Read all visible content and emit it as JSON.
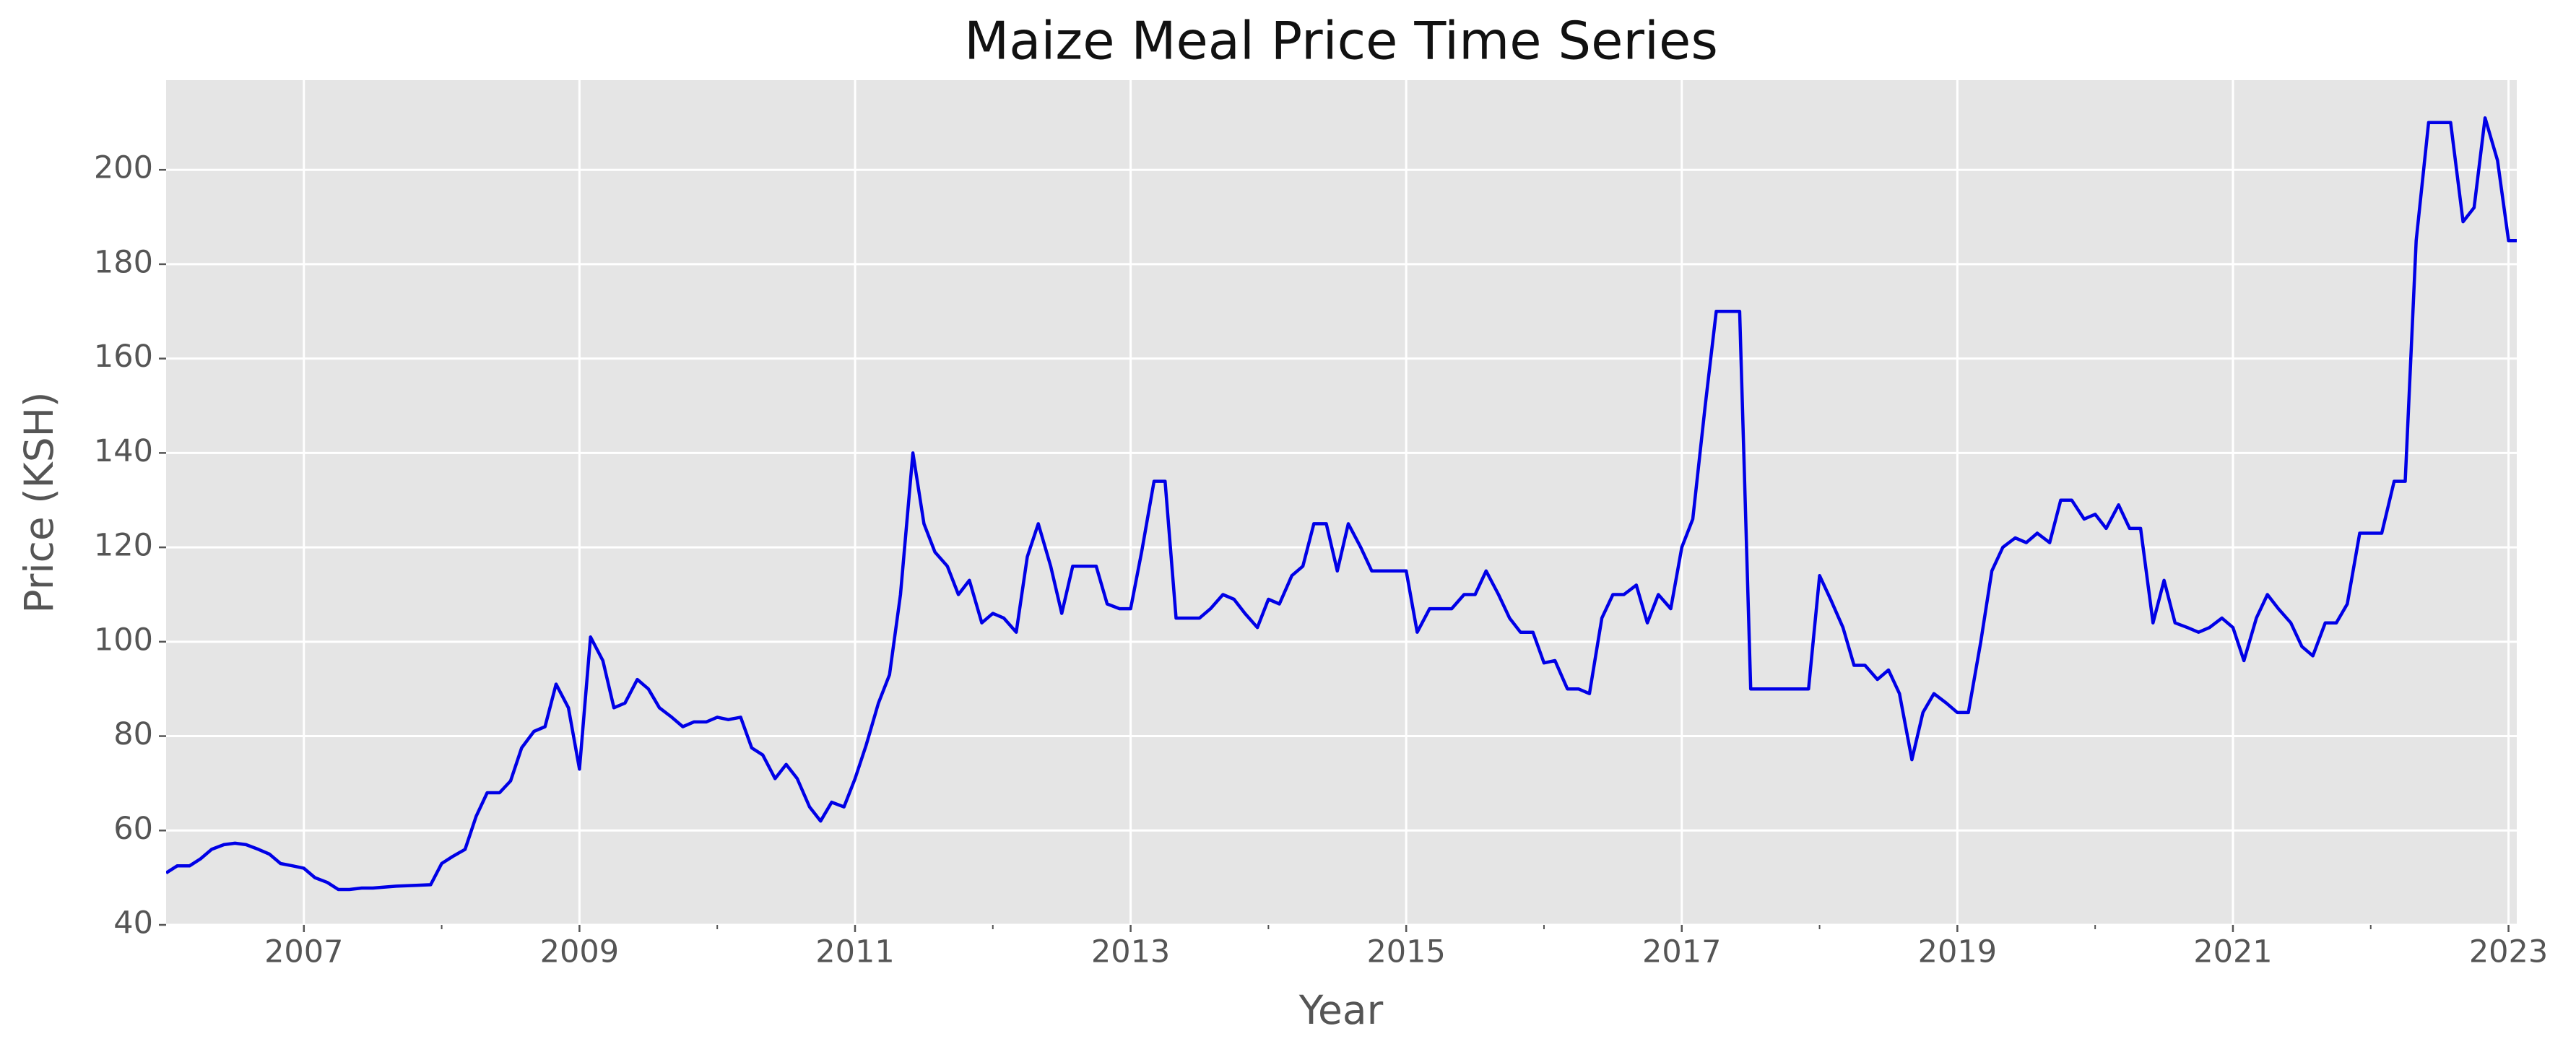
{
  "chart_data": {
    "type": "line",
    "title": "Maize Meal Price Time Series",
    "xlabel": "Year",
    "ylabel": "Price (KSH)",
    "xlim": [
      2006,
      2023.06
    ],
    "ylim": [
      40,
      219
    ],
    "xticks": [
      2007,
      2009,
      2011,
      2013,
      2015,
      2017,
      2019,
      2021,
      2023
    ],
    "xticks_minor": [
      2008,
      2010,
      2012,
      2014,
      2016,
      2018,
      2020,
      2022
    ],
    "yticks": [
      40,
      60,
      80,
      100,
      120,
      140,
      160,
      180,
      200
    ],
    "grid": true,
    "x": [
      2006,
      2006.08,
      2006.17,
      2006.25,
      2006.33,
      2006.42,
      2006.5,
      2006.58,
      2006.67,
      2006.75,
      2006.83,
      2006.92,
      2007,
      2007.08,
      2007.17,
      2007.25,
      2007.33,
      2007.42,
      2007.5,
      2007.58,
      2007.67,
      2007.75,
      2007.83,
      2007.92,
      2008,
      2008.08,
      2008.17,
      2008.25,
      2008.33,
      2008.42,
      2008.5,
      2008.58,
      2008.67,
      2008.75,
      2008.83,
      2008.92,
      2009,
      2009.08,
      2009.17,
      2009.25,
      2009.33,
      2009.42,
      2009.5,
      2009.58,
      2009.67,
      2009.75,
      2009.83,
      2009.92,
      2010,
      2010.08,
      2010.17,
      2010.25,
      2010.33,
      2010.42,
      2010.5,
      2010.58,
      2010.67,
      2010.75,
      2010.83,
      2010.92,
      2011,
      2011.08,
      2011.17,
      2011.25,
      2011.33,
      2011.42,
      2011.5,
      2011.58,
      2011.67,
      2011.75,
      2011.83,
      2011.92,
      2012,
      2012.08,
      2012.17,
      2012.25,
      2012.33,
      2012.42,
      2012.5,
      2012.58,
      2012.67,
      2012.75,
      2012.83,
      2012.92,
      2013,
      2013.08,
      2013.17,
      2013.25,
      2013.33,
      2013.42,
      2013.5,
      2013.58,
      2013.67,
      2013.75,
      2013.83,
      2013.92,
      2014,
      2014.08,
      2014.17,
      2014.25,
      2014.33,
      2014.42,
      2014.5,
      2014.58,
      2014.67,
      2014.75,
      2014.83,
      2014.92,
      2015,
      2015.08,
      2015.17,
      2015.25,
      2015.33,
      2015.42,
      2015.5,
      2015.58,
      2015.67,
      2015.75,
      2015.83,
      2015.92,
      2016,
      2016.08,
      2016.17,
      2016.25,
      2016.33,
      2016.42,
      2016.5,
      2016.58,
      2016.67,
      2016.75,
      2016.83,
      2016.92,
      2017,
      2017.08,
      2017.17,
      2017.25,
      2017.33,
      2017.42,
      2017.5,
      2017.58,
      2017.67,
      2017.75,
      2017.83,
      2017.92,
      2018,
      2018.08,
      2018.17,
      2018.25,
      2018.33,
      2018.42,
      2018.5,
      2018.58,
      2018.67,
      2018.75,
      2018.83,
      2018.92,
      2019,
      2019.08,
      2019.17,
      2019.25,
      2019.33,
      2019.42,
      2019.5,
      2019.58,
      2019.67,
      2019.75,
      2019.83,
      2019.92,
      2020,
      2020.08,
      2020.17,
      2020.25,
      2020.33,
      2020.42,
      2020.5,
      2020.58,
      2020.67,
      2020.75,
      2020.83,
      2020.92,
      2021,
      2021.08,
      2021.17,
      2021.25,
      2021.33,
      2021.42,
      2021.5,
      2021.58,
      2021.67,
      2021.75,
      2021.83,
      2021.92,
      2022,
      2022.08,
      2022.17,
      2022.25,
      2022.33,
      2022.42,
      2022.5,
      2022.58,
      2022.67,
      2022.75,
      2022.83,
      2022.92,
      2023,
      2023.08
    ],
    "series": [
      {
        "name": "Price",
        "color": "#0000e6",
        "values": [
          51,
          52.5,
          52.5,
          54,
          56,
          57,
          57.3,
          57,
          56,
          55,
          53,
          52.5,
          52,
          50,
          49,
          47.5,
          47.5,
          47.8,
          47.8,
          48,
          48.2,
          48.3,
          48.4,
          48.5,
          53,
          54.5,
          56,
          63,
          68,
          68,
          70.5,
          77.5,
          81,
          82,
          91,
          86,
          73,
          101,
          96,
          86,
          87,
          92,
          90,
          86,
          84,
          82,
          83,
          83,
          84,
          83.5,
          84,
          77.5,
          76,
          71,
          74,
          71,
          65,
          62,
          66,
          65,
          71,
          78,
          87,
          93,
          110,
          140,
          125,
          119,
          116,
          110,
          113,
          104,
          106,
          105,
          102,
          118,
          125,
          116,
          106,
          116,
          116,
          116,
          108,
          107,
          107,
          119,
          134,
          134,
          105,
          105,
          105,
          107,
          110,
          109,
          106,
          103,
          109,
          108,
          114,
          116,
          125,
          125,
          115,
          125,
          120,
          115,
          115,
          115,
          115,
          102,
          107,
          107,
          107,
          110,
          110,
          115,
          110,
          105,
          102,
          102,
          95.5,
          96,
          90,
          90,
          89,
          105,
          110,
          110,
          112,
          104,
          110,
          107,
          120,
          126,
          150,
          170,
          170,
          170,
          90,
          90,
          90,
          90,
          90,
          90,
          114,
          109,
          103,
          95,
          95,
          92,
          94,
          89,
          75,
          85,
          89,
          87,
          85,
          85,
          100,
          115,
          120,
          122,
          121,
          123,
          121,
          130,
          130,
          126,
          127,
          124,
          129,
          124,
          124,
          104,
          113,
          104,
          103,
          102,
          103,
          105,
          103,
          96,
          105,
          110,
          107,
          104,
          99,
          97,
          104,
          104,
          108,
          123,
          123,
          123,
          134,
          134,
          185,
          210,
          210,
          210,
          189,
          192,
          211,
          202,
          185,
          185
        ]
      }
    ]
  }
}
